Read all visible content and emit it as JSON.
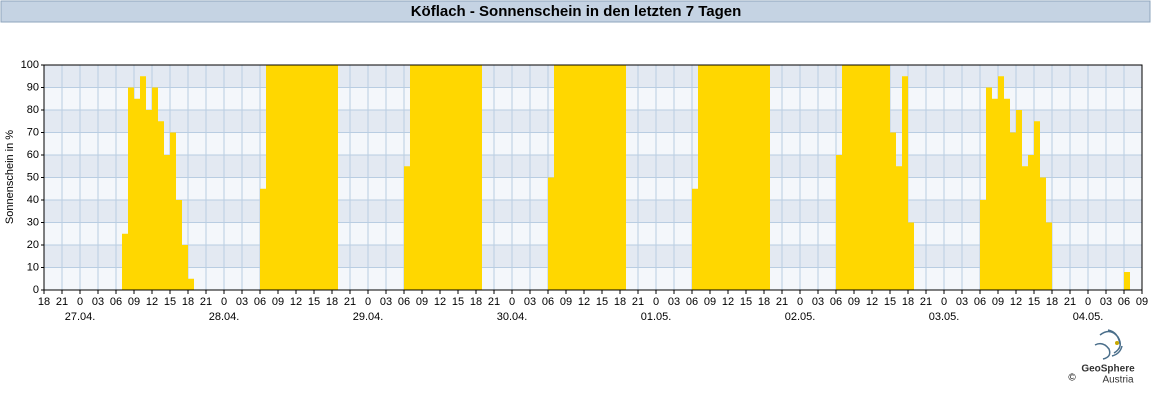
{
  "chart_data": {
    "type": "bar",
    "title": "Köflach - Sonnenschein in den letzten 7 Tagen",
    "y_label": "Sonnenschein in %",
    "color": "#ffd700",
    "grid": true,
    "x": [
      0,
      1,
      2,
      3,
      4,
      5,
      6,
      7,
      8,
      9,
      10,
      11,
      12,
      13,
      14,
      15,
      16,
      17,
      18,
      19,
      20,
      21,
      22,
      23,
      24,
      25,
      26,
      27,
      28,
      29,
      30,
      31,
      32,
      33,
      34,
      35,
      36,
      37,
      38,
      39,
      40,
      41,
      42,
      43,
      44,
      45,
      46,
      47,
      48,
      49,
      50,
      51,
      52,
      53,
      54,
      55,
      56,
      57,
      58,
      59,
      60,
      61,
      62,
      63,
      64,
      65,
      66,
      67,
      68,
      69,
      70,
      71,
      72,
      73,
      74,
      75,
      76,
      77,
      78,
      79,
      80,
      81,
      82,
      83,
      84,
      85,
      86,
      87,
      88,
      89,
      90,
      91,
      92,
      93,
      94,
      95,
      96,
      97,
      98,
      99,
      100,
      101,
      102,
      103,
      104,
      105,
      106,
      107,
      108,
      109,
      110,
      111,
      112,
      113,
      114,
      115,
      116,
      117,
      118,
      119,
      120,
      121,
      122,
      123,
      124,
      125,
      126,
      127,
      128,
      129,
      130,
      131,
      132,
      133,
      134,
      135,
      136,
      137,
      138,
      139,
      140,
      141,
      142,
      143,
      144,
      145,
      146,
      147,
      148,
      149,
      150,
      151,
      152,
      153,
      154,
      155,
      156,
      157,
      158,
      159,
      160,
      161,
      162,
      163,
      164,
      165,
      166,
      167,
      168,
      169,
      170,
      171,
      172,
      173,
      174,
      175,
      176,
      177,
      178,
      179,
      180,
      181,
      182
    ],
    "values": [
      0,
      0,
      0,
      0,
      0,
      0,
      0,
      0,
      0,
      0,
      0,
      0,
      0,
      25,
      90,
      85,
      95,
      80,
      90,
      75,
      60,
      70,
      40,
      20,
      5,
      0,
      0,
      0,
      0,
      0,
      0,
      0,
      0,
      0,
      0,
      0,
      45,
      100,
      100,
      100,
      100,
      100,
      100,
      100,
      100,
      100,
      100,
      100,
      100,
      0,
      0,
      0,
      0,
      0,
      0,
      0,
      0,
      0,
      0,
      0,
      55,
      100,
      100,
      100,
      100,
      100,
      100,
      100,
      100,
      100,
      100,
      100,
      100,
      0,
      0,
      0,
      0,
      0,
      0,
      0,
      0,
      0,
      0,
      0,
      50,
      100,
      100,
      100,
      100,
      100,
      100,
      100,
      100,
      100,
      100,
      100,
      100,
      0,
      0,
      0,
      0,
      0,
      0,
      0,
      0,
      0,
      0,
      0,
      45,
      100,
      100,
      100,
      100,
      100,
      100,
      100,
      100,
      100,
      100,
      100,
      100,
      0,
      0,
      0,
      0,
      0,
      0,
      0,
      0,
      0,
      0,
      0,
      60,
      100,
      100,
      100,
      100,
      100,
      100,
      100,
      100,
      70,
      55,
      95,
      30,
      0,
      0,
      0,
      0,
      0,
      0,
      0,
      0,
      0,
      0,
      0,
      40,
      90,
      85,
      95,
      85,
      70,
      80,
      55,
      60,
      75,
      50,
      30,
      0,
      0,
      0,
      0,
      0,
      0,
      0,
      0,
      0,
      0,
      0,
      0,
      8,
      0,
      0
    ],
    "xlim": [
      0,
      183
    ],
    "xticks": [
      {
        "value": 0,
        "label": "18"
      },
      {
        "value": 3,
        "label": "21"
      },
      {
        "value": 6,
        "label": "0"
      },
      {
        "value": 9,
        "label": "03"
      },
      {
        "value": 12,
        "label": "06"
      },
      {
        "value": 15,
        "label": "09"
      },
      {
        "value": 18,
        "label": "12"
      },
      {
        "value": 21,
        "label": "15"
      },
      {
        "value": 24,
        "label": "18"
      },
      {
        "value": 27,
        "label": "21"
      },
      {
        "value": 30,
        "label": "0"
      },
      {
        "value": 33,
        "label": "03"
      },
      {
        "value": 36,
        "label": "06"
      },
      {
        "value": 39,
        "label": "09"
      },
      {
        "value": 42,
        "label": "12"
      },
      {
        "value": 45,
        "label": "15"
      },
      {
        "value": 48,
        "label": "18"
      },
      {
        "value": 51,
        "label": "21"
      },
      {
        "value": 54,
        "label": "0"
      },
      {
        "value": 57,
        "label": "03"
      },
      {
        "value": 60,
        "label": "06"
      },
      {
        "value": 63,
        "label": "09"
      },
      {
        "value": 66,
        "label": "12"
      },
      {
        "value": 69,
        "label": "15"
      },
      {
        "value": 72,
        "label": "18"
      },
      {
        "value": 75,
        "label": "21"
      },
      {
        "value": 78,
        "label": "0"
      },
      {
        "value": 81,
        "label": "03"
      },
      {
        "value": 84,
        "label": "06"
      },
      {
        "value": 87,
        "label": "09"
      },
      {
        "value": 90,
        "label": "12"
      },
      {
        "value": 93,
        "label": "15"
      },
      {
        "value": 96,
        "label": "18"
      },
      {
        "value": 99,
        "label": "21"
      },
      {
        "value": 102,
        "label": "0"
      },
      {
        "value": 105,
        "label": "03"
      },
      {
        "value": 108,
        "label": "06"
      },
      {
        "value": 111,
        "label": "09"
      },
      {
        "value": 114,
        "label": "12"
      },
      {
        "value": 117,
        "label": "15"
      },
      {
        "value": 120,
        "label": "18"
      },
      {
        "value": 123,
        "label": "21"
      },
      {
        "value": 126,
        "label": "0"
      },
      {
        "value": 129,
        "label": "03"
      },
      {
        "value": 132,
        "label": "06"
      },
      {
        "value": 135,
        "label": "09"
      },
      {
        "value": 138,
        "label": "12"
      },
      {
        "value": 141,
        "label": "15"
      },
      {
        "value": 144,
        "label": "18"
      },
      {
        "value": 147,
        "label": "21"
      },
      {
        "value": 150,
        "label": "0"
      },
      {
        "value": 153,
        "label": "03"
      },
      {
        "value": 156,
        "label": "06"
      },
      {
        "value": 159,
        "label": "09"
      },
      {
        "value": 162,
        "label": "12"
      },
      {
        "value": 165,
        "label": "15"
      },
      {
        "value": 168,
        "label": "18"
      },
      {
        "value": 171,
        "label": "21"
      },
      {
        "value": 174,
        "label": "0"
      },
      {
        "value": 177,
        "label": "03"
      },
      {
        "value": 180,
        "label": "06"
      },
      {
        "value": 183,
        "label": "09"
      }
    ],
    "date_labels": [
      {
        "value": 6,
        "label": "27.04."
      },
      {
        "value": 30,
        "label": "28.04."
      },
      {
        "value": 54,
        "label": "29.04."
      },
      {
        "value": 78,
        "label": "30.04."
      },
      {
        "value": 102,
        "label": "01.05."
      },
      {
        "value": 126,
        "label": "02.05."
      },
      {
        "value": 150,
        "label": "03.05."
      },
      {
        "value": 174,
        "label": "04.05."
      }
    ],
    "ylim": [
      0,
      100
    ],
    "yticks": [
      0,
      10,
      20,
      30,
      40,
      50,
      60,
      70,
      80,
      90,
      100
    ]
  },
  "logo": {
    "name": "GeoSphere",
    "sub": "Austria",
    "copyright": "©"
  }
}
